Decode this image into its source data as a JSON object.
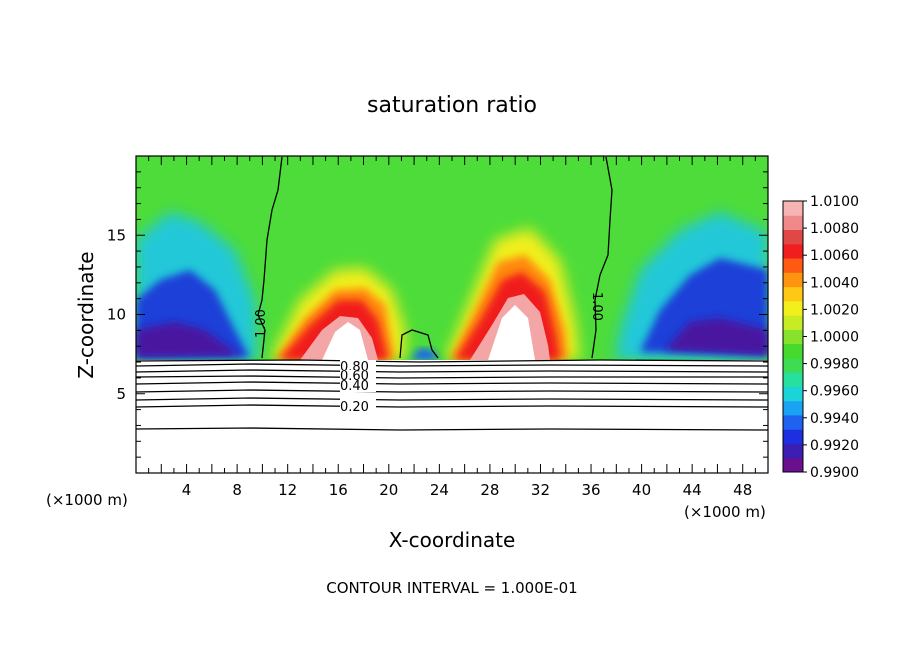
{
  "chart_data": {
    "type": "heatmap",
    "title": "saturation ratio",
    "xlabel": "X-coordinate",
    "ylabel": "Z-coordinate",
    "x_unit": "(×1000 m)",
    "footer": "CONTOUR INTERVAL = 1.000E-01",
    "xlim": [
      0,
      50
    ],
    "ylim": [
      0,
      20
    ],
    "x_ticks": [
      "4",
      "8",
      "12",
      "16",
      "20",
      "24",
      "28",
      "32",
      "36",
      "40",
      "44",
      "48"
    ],
    "y_ticks": [
      "5",
      "10",
      "15"
    ],
    "colorbar": {
      "min": 0.99,
      "max": 1.01,
      "labels": [
        "1.0100",
        "1.0080",
        "1.0060",
        "1.0040",
        "1.0020",
        "1.0000",
        "0.9980",
        "0.9960",
        "0.9940",
        "0.9920",
        "0.9900"
      ],
      "colors": [
        "#6a0f8e",
        "#3b1fb4",
        "#1e2fe0",
        "#1f62f0",
        "#1aa2f5",
        "#1bd4d8",
        "#27e0a0",
        "#3ddc52",
        "#46d92e",
        "#86e22a",
        "#c8ec24",
        "#f2f01c",
        "#ffc814",
        "#ff9410",
        "#ff5a14",
        "#f01e1e",
        "#e04848",
        "#f08a8a",
        "#f7b4b4"
      ]
    },
    "contours": [
      {
        "label": "1.00",
        "level": 1.0
      },
      {
        "label": "1.00",
        "level": 1.0
      },
      {
        "label": "0.80",
        "level": 0.8
      },
      {
        "label": "0.60",
        "level": 0.6
      },
      {
        "label": "0.40",
        "level": 0.4
      },
      {
        "label": "0.20",
        "level": 0.2
      }
    ],
    "features": {
      "maxima": [
        {
          "x": 17,
          "z": 11,
          "value": 1.01
        },
        {
          "x": 30.5,
          "z": 12,
          "value": 1.01
        }
      ],
      "minima": [
        {
          "x": 5,
          "z": 11,
          "value": 0.99
        },
        {
          "x": 46,
          "z": 11,
          "value": 0.99
        }
      ],
      "cloud_base_z": 7.2
    }
  }
}
